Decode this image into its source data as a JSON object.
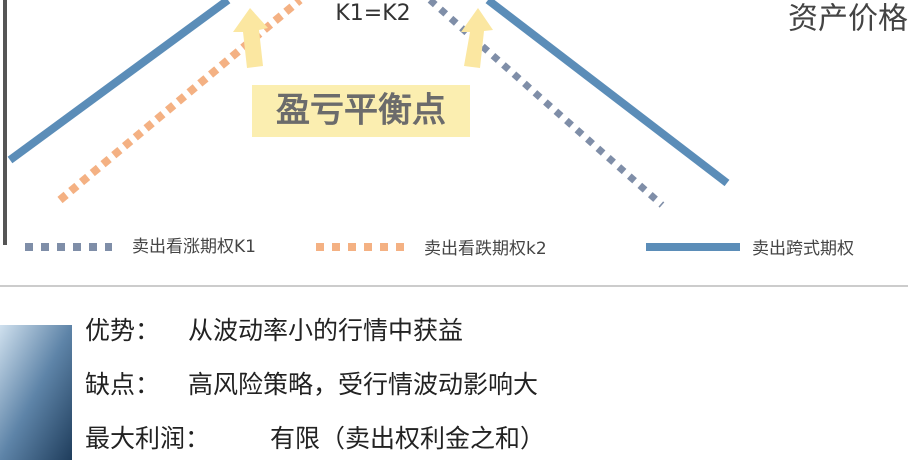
{
  "diagram": {
    "strike_label": "K1=K2",
    "axis_label": "资产价格",
    "breakeven_label": "盈亏平衡点",
    "legend": [
      "卖出看涨期权K1",
      "卖出看跌期权k2",
      "卖出跨式期权"
    ]
  },
  "details": [
    {
      "label": "优势：",
      "text": "从波动率小的行情中获益"
    },
    {
      "label": "缺点：",
      "text": "高风险策略，受行情波动影响大"
    },
    {
      "label": "最大利润：",
      "text": "有限（卖出权利金之和）"
    }
  ]
}
